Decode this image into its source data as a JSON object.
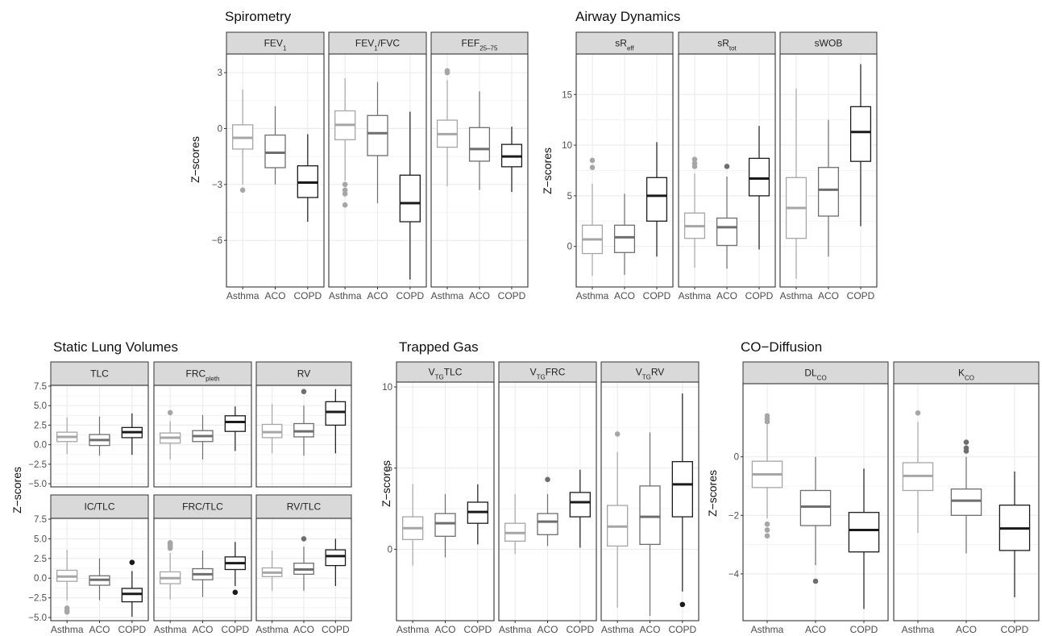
{
  "colors": {
    "Asthma": "#a6a6a6",
    "ACO": "#6e6e6e",
    "COPD": "#1a1a1a",
    "strip_fill": "#d9d9d9",
    "grid": "#ebebeb"
  },
  "chart_data": [
    {
      "type": "boxplot",
      "title": "Spirometry",
      "ylabel": "Z−scores",
      "ylim": [
        -8.5,
        4
      ],
      "yticks": [
        3,
        0,
        -3,
        -6
      ],
      "ytick_labels": [
        "3",
        "0",
        "−3",
        "−6"
      ],
      "categories": [
        "Asthma",
        "ACO",
        "COPD"
      ],
      "panels": [
        {
          "name": "FEV",
          "sub": "1",
          "name_after": "",
          "boxes": [
            {
              "category": "Asthma",
              "whisker_low": -3.0,
              "q1": -1.1,
              "median": -0.5,
              "q3": 0.2,
              "whisker_high": 2.1,
              "outliers": [
                -3.3
              ]
            },
            {
              "category": "ACO",
              "whisker_low": -3.0,
              "q1": -2.1,
              "median": -1.3,
              "q3": -0.35,
              "whisker_high": 1.2,
              "outliers": []
            },
            {
              "category": "COPD",
              "whisker_low": -5.0,
              "q1": -3.7,
              "median": -2.9,
              "q3": -2.0,
              "whisker_high": -0.3,
              "outliers": []
            }
          ]
        },
        {
          "name": "FEV",
          "sub": "1",
          "name_after": "/FVC",
          "boxes": [
            {
              "category": "Asthma",
              "whisker_low": -2.8,
              "q1": -0.6,
              "median": 0.2,
              "q3": 0.95,
              "whisker_high": 2.7,
              "outliers": [
                -3.0,
                -3.3,
                -3.5,
                -4.1
              ]
            },
            {
              "category": "ACO",
              "whisker_low": -4.0,
              "q1": -1.45,
              "median": -0.25,
              "q3": 0.7,
              "whisker_high": 2.5,
              "outliers": []
            },
            {
              "category": "COPD",
              "whisker_low": -8.1,
              "q1": -5.0,
              "median": -4.0,
              "q3": -2.5,
              "whisker_high": 0.9,
              "outliers": []
            }
          ]
        },
        {
          "name": "FEF",
          "sub": "25–75",
          "name_after": "",
          "boxes": [
            {
              "category": "Asthma",
              "whisker_low": -3.1,
              "q1": -1.0,
              "median": -0.3,
              "q3": 0.45,
              "whisker_high": 2.6,
              "outliers": [
                3.0,
                3.1
              ]
            },
            {
              "category": "ACO",
              "whisker_low": -3.3,
              "q1": -1.75,
              "median": -1.1,
              "q3": 0.05,
              "whisker_high": 2.0,
              "outliers": []
            },
            {
              "category": "COPD",
              "whisker_low": -3.4,
              "q1": -2.05,
              "median": -1.5,
              "q3": -0.85,
              "whisker_high": 0.1,
              "outliers": []
            }
          ]
        }
      ]
    },
    {
      "type": "boxplot",
      "title": "Airway Dynamics",
      "ylabel": "Z−scores",
      "ylim": [
        -4,
        19
      ],
      "yticks": [
        15,
        10,
        5,
        0
      ],
      "ytick_labels": [
        "15",
        "10",
        "5",
        "0"
      ],
      "categories": [
        "Asthma",
        "ACO",
        "COPD"
      ],
      "panels": [
        {
          "name": "sR",
          "sub": "eff",
          "name_after": "",
          "boxes": [
            {
              "category": "Asthma",
              "whisker_low": -2.9,
              "q1": -0.7,
              "median": 0.7,
              "q3": 2.1,
              "whisker_high": 6.2,
              "outliers": [
                7.8,
                8.5
              ]
            },
            {
              "category": "ACO",
              "whisker_low": -2.8,
              "q1": -0.6,
              "median": 0.9,
              "q3": 2.1,
              "whisker_high": 5.2,
              "outliers": []
            },
            {
              "category": "COPD",
              "whisker_low": -1.0,
              "q1": 2.5,
              "median": 5.0,
              "q3": 6.8,
              "whisker_high": 10.3,
              "outliers": []
            }
          ]
        },
        {
          "name": "sR",
          "sub": "tot",
          "name_after": "",
          "boxes": [
            {
              "category": "Asthma",
              "whisker_low": -2.1,
              "q1": 0.8,
              "median": 2.0,
              "q3": 3.3,
              "whisker_high": 7.2,
              "outliers": [
                7.9,
                8.2,
                8.6
              ]
            },
            {
              "category": "ACO",
              "whisker_low": -2.2,
              "q1": 0.1,
              "median": 1.9,
              "q3": 2.8,
              "whisker_high": 6.9,
              "outliers": [
                7.9
              ]
            },
            {
              "category": "COPD",
              "whisker_low": -0.3,
              "q1": 5.0,
              "median": 6.7,
              "q3": 8.7,
              "whisker_high": 11.9,
              "outliers": []
            }
          ]
        },
        {
          "name": "sWOB",
          "sub": "",
          "name_after": "",
          "boxes": [
            {
              "category": "Asthma",
              "whisker_low": -3.2,
              "q1": 0.8,
              "median": 3.8,
              "q3": 6.8,
              "whisker_high": 15.6,
              "outliers": []
            },
            {
              "category": "ACO",
              "whisker_low": -1.0,
              "q1": 3.0,
              "median": 5.6,
              "q3": 7.8,
              "whisker_high": 12.5,
              "outliers": []
            },
            {
              "category": "COPD",
              "whisker_low": 2.0,
              "q1": 8.4,
              "median": 11.3,
              "q3": 13.8,
              "whisker_high": 18.0,
              "outliers": []
            }
          ]
        }
      ]
    },
    {
      "type": "boxplot",
      "title": "Static Lung Volumes",
      "ylabel": "Z−scores",
      "ylim": [
        -5.4,
        7.6
      ],
      "yticks": [
        7.5,
        5.0,
        2.5,
        0.0,
        -2.5,
        -5.0
      ],
      "ytick_labels": [
        "7.5",
        "5.0",
        "2.5",
        "0.0",
        "−2.5",
        "−5.0"
      ],
      "categories": [
        "Asthma",
        "ACO",
        "COPD"
      ],
      "panels": [
        {
          "name": "TLC",
          "sub": "",
          "name_after": "",
          "boxes": [
            {
              "category": "Asthma",
              "whisker_low": -1.2,
              "q1": 0.4,
              "median": 1.0,
              "q3": 1.6,
              "whisker_high": 3.5,
              "outliers": []
            },
            {
              "category": "ACO",
              "whisker_low": -1.4,
              "q1": -0.1,
              "median": 0.6,
              "q3": 1.3,
              "whisker_high": 3.6,
              "outliers": []
            },
            {
              "category": "COPD",
              "whisker_low": -1.3,
              "q1": 0.9,
              "median": 1.6,
              "q3": 2.2,
              "whisker_high": 4.0,
              "outliers": []
            }
          ]
        },
        {
          "name": "FRC",
          "sub": "pleth",
          "name_after": "",
          "boxes": [
            {
              "category": "Asthma",
              "whisker_low": -1.9,
              "q1": 0.2,
              "median": 0.9,
              "q3": 1.5,
              "whisker_high": 3.0,
              "outliers": [
                4.1
              ]
            },
            {
              "category": "ACO",
              "whisker_low": -1.9,
              "q1": 0.4,
              "median": 1.1,
              "q3": 1.8,
              "whisker_high": 3.8,
              "outliers": []
            },
            {
              "category": "COPD",
              "whisker_low": -0.8,
              "q1": 1.7,
              "median": 2.9,
              "q3": 3.7,
              "whisker_high": 4.9,
              "outliers": []
            }
          ]
        },
        {
          "name": "RV",
          "sub": "",
          "name_after": "",
          "boxes": [
            {
              "category": "Asthma",
              "whisker_low": -1.1,
              "q1": 0.9,
              "median": 1.6,
              "q3": 2.6,
              "whisker_high": 5.2,
              "outliers": []
            },
            {
              "category": "ACO",
              "whisker_low": -1.4,
              "q1": 1.0,
              "median": 1.7,
              "q3": 2.7,
              "whisker_high": 5.0,
              "outliers": [
                6.8
              ]
            },
            {
              "category": "COPD",
              "whisker_low": -1.1,
              "q1": 2.5,
              "median": 4.2,
              "q3": 5.5,
              "whisker_high": 7.1,
              "outliers": []
            }
          ]
        },
        {
          "name": "IC/TLC",
          "sub": "",
          "name_after": "",
          "boxes": [
            {
              "category": "Asthma",
              "whisker_low": -2.8,
              "q1": -0.4,
              "median": 0.2,
              "q3": 1.0,
              "whisker_high": 3.6,
              "outliers": [
                -3.8,
                -4.1,
                -4.3
              ]
            },
            {
              "category": "ACO",
              "whisker_low": -2.8,
              "q1": -0.9,
              "median": -0.2,
              "q3": 0.3,
              "whisker_high": 2.5,
              "outliers": []
            },
            {
              "category": "COPD",
              "whisker_low": -4.9,
              "q1": -3.0,
              "median": -2.0,
              "q3": -1.3,
              "whisker_high": 0.9,
              "outliers": [
                2.0
              ]
            }
          ]
        },
        {
          "name": "FRC/TLC",
          "sub": "",
          "name_after": "",
          "boxes": [
            {
              "category": "Asthma",
              "whisker_low": -2.7,
              "q1": -0.7,
              "median": 0.0,
              "q3": 0.8,
              "whisker_high": 3.2,
              "outliers": [
                3.8,
                4.0,
                4.2,
                4.4,
                4.5
              ]
            },
            {
              "category": "ACO",
              "whisker_low": -2.4,
              "q1": -0.2,
              "median": 0.5,
              "q3": 1.2,
              "whisker_high": 3.5,
              "outliers": []
            },
            {
              "category": "COPD",
              "whisker_low": -1.0,
              "q1": 1.1,
              "median": 1.9,
              "q3": 2.7,
              "whisker_high": 4.6,
              "outliers": [
                -1.8
              ]
            }
          ]
        },
        {
          "name": "RV/TLC",
          "sub": "",
          "name_after": "",
          "boxes": [
            {
              "category": "Asthma",
              "whisker_low": -1.6,
              "q1": 0.2,
              "median": 0.7,
              "q3": 1.3,
              "whisker_high": 3.5,
              "outliers": []
            },
            {
              "category": "ACO",
              "whisker_low": -1.6,
              "q1": 0.5,
              "median": 1.1,
              "q3": 1.9,
              "whisker_high": 4.0,
              "outliers": [
                5.0
              ]
            },
            {
              "category": "COPD",
              "whisker_low": -1.0,
              "q1": 1.6,
              "median": 2.8,
              "q3": 3.6,
              "whisker_high": 5.0,
              "outliers": []
            }
          ]
        }
      ]
    },
    {
      "type": "boxplot",
      "title": "Trapped Gas",
      "ylabel": "Z−scores",
      "ylim": [
        -4.4,
        10.3
      ],
      "yticks": [
        10,
        5,
        0
      ],
      "ytick_labels": [
        "10",
        "5",
        "0"
      ],
      "categories": [
        "Asthma",
        "ACO",
        "COPD"
      ],
      "panels": [
        {
          "name": "V",
          "sub": "TG",
          "name_after": "TLC",
          "boxes": [
            {
              "category": "Asthma",
              "whisker_low": -1.0,
              "q1": 0.6,
              "median": 1.3,
              "q3": 2.0,
              "whisker_high": 4.0,
              "outliers": []
            },
            {
              "category": "ACO",
              "whisker_low": -0.5,
              "q1": 0.8,
              "median": 1.6,
              "q3": 2.2,
              "whisker_high": 3.4,
              "outliers": []
            },
            {
              "category": "COPD",
              "whisker_low": 0.3,
              "q1": 1.6,
              "median": 2.3,
              "q3": 2.9,
              "whisker_high": 4.0,
              "outliers": []
            }
          ]
        },
        {
          "name": "V",
          "sub": "TG",
          "name_after": "FRC",
          "boxes": [
            {
              "category": "Asthma",
              "whisker_low": -0.3,
              "q1": 0.5,
              "median": 1.0,
              "q3": 1.6,
              "whisker_high": 3.4,
              "outliers": []
            },
            {
              "category": "ACO",
              "whisker_low": 0.2,
              "q1": 0.9,
              "median": 1.7,
              "q3": 2.2,
              "whisker_high": 3.4,
              "outliers": [
                4.3
              ]
            },
            {
              "category": "COPD",
              "whisker_low": 0.1,
              "q1": 2.0,
              "median": 2.9,
              "q3": 3.5,
              "whisker_high": 4.9,
              "outliers": []
            }
          ]
        },
        {
          "name": "V",
          "sub": "TG",
          "name_after": "RV",
          "boxes": [
            {
              "category": "Asthma",
              "whisker_low": -3.6,
              "q1": 0.2,
              "median": 1.4,
              "q3": 2.7,
              "whisker_high": 6.0,
              "outliers": [
                7.1
              ]
            },
            {
              "category": "ACO",
              "whisker_low": -4.1,
              "q1": 0.3,
              "median": 2.0,
              "q3": 3.9,
              "whisker_high": 7.2,
              "outliers": []
            },
            {
              "category": "COPD",
              "whisker_low": -2.6,
              "q1": 2.0,
              "median": 4.0,
              "q3": 5.4,
              "whisker_high": 9.6,
              "outliers": [
                -3.4
              ]
            }
          ]
        }
      ]
    },
    {
      "type": "boxplot",
      "title": "CO−Diffusion",
      "ylabel": "Z−scores",
      "ylim": [
        -5.6,
        2.5
      ],
      "yticks": [
        0,
        -2,
        -4
      ],
      "ytick_labels": [
        "0",
        "−2",
        "−4"
      ],
      "categories": [
        "Asthma",
        "ACO",
        "COPD"
      ],
      "panels": [
        {
          "name": "DL",
          "sub": "CO",
          "name_after": "",
          "boxes": [
            {
              "category": "Asthma",
              "whisker_low": -2.1,
              "q1": -1.05,
              "median": -0.6,
              "q3": -0.15,
              "whisker_high": 1.1,
              "outliers": [
                1.2,
                1.3,
                1.4,
                -2.3,
                -2.5,
                -2.7
              ]
            },
            {
              "category": "ACO",
              "whisker_low": -3.7,
              "q1": -2.35,
              "median": -1.7,
              "q3": -1.15,
              "whisker_high": 0.0,
              "outliers": [
                -4.25
              ]
            },
            {
              "category": "COPD",
              "whisker_low": -5.2,
              "q1": -3.25,
              "median": -2.5,
              "q3": -1.9,
              "whisker_high": -0.4,
              "outliers": []
            }
          ]
        },
        {
          "name": "K",
          "sub": "CO",
          "name_after": "",
          "boxes": [
            {
              "category": "Asthma",
              "whisker_low": -2.6,
              "q1": -1.15,
              "median": -0.65,
              "q3": -0.2,
              "whisker_high": 1.2,
              "outliers": [
                1.5
              ]
            },
            {
              "category": "ACO",
              "whisker_low": -3.3,
              "q1": -2.0,
              "median": -1.5,
              "q3": -1.1,
              "whisker_high": 0.0,
              "outliers": [
                0.2,
                0.3,
                0.5
              ]
            },
            {
              "category": "COPD",
              "whisker_low": -4.8,
              "q1": -3.2,
              "median": -2.45,
              "q3": -1.65,
              "whisker_high": -0.5,
              "outliers": []
            }
          ]
        }
      ]
    }
  ]
}
